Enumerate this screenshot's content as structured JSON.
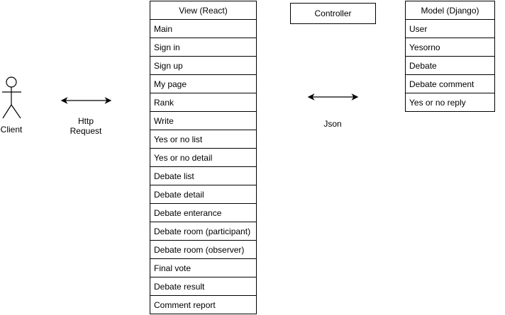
{
  "actor": {
    "label": "Client"
  },
  "http_request": {
    "line1": "Http",
    "line2": "Request"
  },
  "json_label": "Json",
  "view": {
    "title": "View (React)",
    "items": [
      "Main",
      "Sign in",
      "Sign up",
      "My page",
      "Rank",
      "Write",
      "Yes or no list",
      "Yes or no detail",
      "Debate list",
      "Debate detail",
      "Debate enterance",
      "Debate room (participant)",
      "Debate room (observer)",
      "Final vote",
      "Debate result",
      "Comment report"
    ]
  },
  "controller": {
    "title": "Controller"
  },
  "model": {
    "title": "Model (Django)",
    "items": [
      "User",
      "Yesorno",
      "Debate",
      "Debate comment",
      "Yes or no reply"
    ]
  }
}
